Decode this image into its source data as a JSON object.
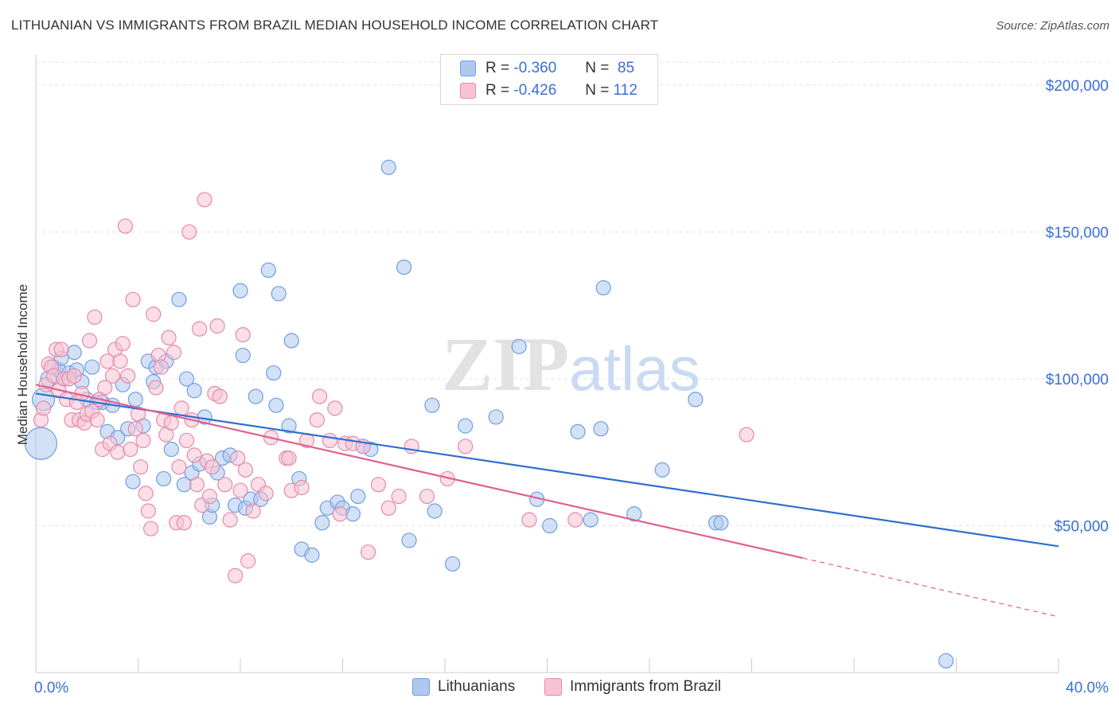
{
  "title": "LITHUANIAN VS IMMIGRANTS FROM BRAZIL MEDIAN HOUSEHOLD INCOME CORRELATION CHART",
  "source": "Source: ZipAtlas.com",
  "watermark": {
    "zip": "ZIP",
    "atlas": "atlas"
  },
  "legend": {
    "r_label": "R =",
    "n_label": "N =",
    "series": [
      {
        "r": "-0.360",
        "n": "85",
        "color": "#aec8ef",
        "border": "#6f9ee0"
      },
      {
        "r": "-0.426",
        "n": "112",
        "color": "#f7c3d4",
        "border": "#e48aa9"
      }
    ]
  },
  "chart_data": {
    "type": "scatter",
    "xlabel": "",
    "ylabel": "Median Household Income",
    "xlim": [
      0,
      40
    ],
    "ylim": [
      0,
      210000
    ],
    "x_tick_labels": [
      "0.0%",
      "40.0%"
    ],
    "y_ticks": [
      50000,
      100000,
      150000,
      200000
    ],
    "y_tick_labels": [
      "$50,000",
      "$100,000",
      "$150,000",
      "$200,000"
    ],
    "grid": true,
    "series": [
      {
        "name": "Lithuanians",
        "color": "#6f9ee0",
        "fill": "#aec8ef",
        "trend": {
          "x0": 0,
          "y0": 95000,
          "x1": 40,
          "y1": 43000,
          "dashed_from": null
        },
        "points": [
          [
            0.2,
            78000,
            20
          ],
          [
            0.3,
            93000,
            14
          ],
          [
            0.5,
            100000,
            10
          ],
          [
            0.7,
            104000,
            9
          ],
          [
            0.9,
            103000,
            9
          ],
          [
            1.0,
            107000,
            9
          ],
          [
            1.1,
            100000,
            9
          ],
          [
            1.3,
            102000,
            9
          ],
          [
            1.5,
            109000,
            9
          ],
          [
            1.6,
            103000,
            9
          ],
          [
            1.8,
            99000,
            9
          ],
          [
            2.0,
            93000,
            9
          ],
          [
            2.2,
            104000,
            9
          ],
          [
            2.4,
            92000,
            9
          ],
          [
            2.6,
            92000,
            9
          ],
          [
            2.8,
            82000,
            9
          ],
          [
            3.0,
            91000,
            9
          ],
          [
            3.2,
            80000,
            9
          ],
          [
            3.4,
            98000,
            9
          ],
          [
            3.6,
            83000,
            9
          ],
          [
            3.8,
            65000,
            9
          ],
          [
            3.9,
            93000,
            9
          ],
          [
            4.2,
            84000,
            9
          ],
          [
            4.4,
            106000,
            9
          ],
          [
            4.6,
            99000,
            9
          ],
          [
            4.7,
            104000,
            9
          ],
          [
            5.0,
            66000,
            9
          ],
          [
            5.1,
            106000,
            9
          ],
          [
            5.3,
            76000,
            9
          ],
          [
            5.6,
            127000,
            9
          ],
          [
            5.8,
            64000,
            9
          ],
          [
            5.9,
            100000,
            9
          ],
          [
            6.1,
            68000,
            9
          ],
          [
            6.2,
            96000,
            9
          ],
          [
            6.4,
            71000,
            9
          ],
          [
            6.6,
            87000,
            9
          ],
          [
            6.8,
            53000,
            9
          ],
          [
            6.9,
            57000,
            9
          ],
          [
            7.1,
            68000,
            9
          ],
          [
            7.3,
            73000,
            9
          ],
          [
            7.6,
            74000,
            9
          ],
          [
            7.8,
            57000,
            9
          ],
          [
            8.0,
            130000,
            9
          ],
          [
            8.1,
            108000,
            9
          ],
          [
            8.2,
            56000,
            9
          ],
          [
            8.4,
            59000,
            9
          ],
          [
            8.6,
            94000,
            9
          ],
          [
            8.8,
            59000,
            9
          ],
          [
            9.1,
            137000,
            9
          ],
          [
            9.3,
            102000,
            9
          ],
          [
            9.4,
            91000,
            9
          ],
          [
            9.5,
            129000,
            9
          ],
          [
            9.9,
            84000,
            9
          ],
          [
            10.0,
            113000,
            9
          ],
          [
            10.3,
            66000,
            9
          ],
          [
            10.4,
            42000,
            9
          ],
          [
            10.8,
            40000,
            9
          ],
          [
            11.2,
            51000,
            9
          ],
          [
            11.4,
            56000,
            9
          ],
          [
            11.8,
            58000,
            9
          ],
          [
            12.0,
            56000,
            9
          ],
          [
            12.4,
            54000,
            9
          ],
          [
            12.6,
            60000,
            9
          ],
          [
            12.8,
            77000,
            9
          ],
          [
            13.1,
            76000,
            9
          ],
          [
            13.8,
            172000,
            9
          ],
          [
            14.4,
            138000,
            9
          ],
          [
            14.6,
            45000,
            9
          ],
          [
            15.5,
            91000,
            9
          ],
          [
            15.6,
            55000,
            9
          ],
          [
            16.3,
            37000,
            9
          ],
          [
            16.8,
            84000,
            9
          ],
          [
            18.0,
            87000,
            9
          ],
          [
            18.9,
            111000,
            9
          ],
          [
            19.6,
            59000,
            9
          ],
          [
            20.1,
            50000,
            9
          ],
          [
            21.2,
            82000,
            9
          ],
          [
            21.7,
            52000,
            9
          ],
          [
            22.1,
            83000,
            9
          ],
          [
            22.2,
            131000,
            9
          ],
          [
            23.4,
            54000,
            9
          ],
          [
            24.5,
            69000,
            9
          ],
          [
            25.8,
            93000,
            9
          ],
          [
            26.6,
            51000,
            9
          ],
          [
            26.8,
            51000,
            9
          ],
          [
            35.6,
            4000,
            9
          ]
        ]
      },
      {
        "name": "Immigrants from Brazil",
        "color": "#e48aa9",
        "fill": "#f7c3d4",
        "trend": {
          "x0": 0,
          "y0": 98000,
          "x1": 30,
          "y1": 39000,
          "dashed_to_x": 40,
          "dashed_to_y": 19000
        },
        "points": [
          [
            0.2,
            86000,
            9
          ],
          [
            0.3,
            90000,
            9
          ],
          [
            0.4,
            98000,
            9
          ],
          [
            0.5,
            105000,
            9
          ],
          [
            0.6,
            104000,
            9
          ],
          [
            0.7,
            101000,
            9
          ],
          [
            0.8,
            110000,
            9
          ],
          [
            0.9,
            96000,
            9
          ],
          [
            1.0,
            110000,
            9
          ],
          [
            1.1,
            100000,
            9
          ],
          [
            1.2,
            93000,
            9
          ],
          [
            1.3,
            100000,
            9
          ],
          [
            1.4,
            86000,
            9
          ],
          [
            1.5,
            101000,
            9
          ],
          [
            1.6,
            92000,
            9
          ],
          [
            1.7,
            86000,
            9
          ],
          [
            1.8,
            95000,
            9
          ],
          [
            1.9,
            85000,
            9
          ],
          [
            2.0,
            88000,
            9
          ],
          [
            2.1,
            113000,
            9
          ],
          [
            2.2,
            89000,
            9
          ],
          [
            2.3,
            121000,
            9
          ],
          [
            2.4,
            86000,
            9
          ],
          [
            2.5,
            93000,
            9
          ],
          [
            2.6,
            76000,
            9
          ],
          [
            2.7,
            97000,
            9
          ],
          [
            2.8,
            106000,
            9
          ],
          [
            2.9,
            78000,
            9
          ],
          [
            3.0,
            101000,
            9
          ],
          [
            3.1,
            110000,
            9
          ],
          [
            3.2,
            75000,
            9
          ],
          [
            3.3,
            106000,
            9
          ],
          [
            3.4,
            112000,
            9
          ],
          [
            3.5,
            152000,
            9
          ],
          [
            3.6,
            101000,
            9
          ],
          [
            3.7,
            76000,
            9
          ],
          [
            3.8,
            127000,
            9
          ],
          [
            3.9,
            83000,
            9
          ],
          [
            4.0,
            88000,
            9
          ],
          [
            4.1,
            70000,
            9
          ],
          [
            4.2,
            79000,
            9
          ],
          [
            4.3,
            61000,
            9
          ],
          [
            4.4,
            55000,
            9
          ],
          [
            4.5,
            49000,
            9
          ],
          [
            4.6,
            122000,
            9
          ],
          [
            4.7,
            97000,
            9
          ],
          [
            4.8,
            108000,
            9
          ],
          [
            4.9,
            104000,
            9
          ],
          [
            5.0,
            86000,
            9
          ],
          [
            5.1,
            81000,
            9
          ],
          [
            5.2,
            114000,
            9
          ],
          [
            5.3,
            85000,
            9
          ],
          [
            5.4,
            109000,
            9
          ],
          [
            5.5,
            51000,
            9
          ],
          [
            5.6,
            70000,
            9
          ],
          [
            5.7,
            90000,
            9
          ],
          [
            5.8,
            51000,
            9
          ],
          [
            5.9,
            79000,
            9
          ],
          [
            6.0,
            150000,
            9
          ],
          [
            6.1,
            86000,
            9
          ],
          [
            6.2,
            74000,
            9
          ],
          [
            6.3,
            64000,
            9
          ],
          [
            6.4,
            117000,
            9
          ],
          [
            6.5,
            57000,
            9
          ],
          [
            6.6,
            161000,
            9
          ],
          [
            6.7,
            72000,
            9
          ],
          [
            6.8,
            60000,
            9
          ],
          [
            6.9,
            70000,
            9
          ],
          [
            7.0,
            95000,
            9
          ],
          [
            7.1,
            118000,
            9
          ],
          [
            7.2,
            94000,
            9
          ],
          [
            7.4,
            64000,
            9
          ],
          [
            7.6,
            52000,
            9
          ],
          [
            7.8,
            33000,
            9
          ],
          [
            7.9,
            73000,
            9
          ],
          [
            8.0,
            62000,
            9
          ],
          [
            8.1,
            115000,
            9
          ],
          [
            8.2,
            69000,
            9
          ],
          [
            8.3,
            38000,
            9
          ],
          [
            8.5,
            55000,
            9
          ],
          [
            8.7,
            64000,
            9
          ],
          [
            9.0,
            61000,
            9
          ],
          [
            9.2,
            80000,
            9
          ],
          [
            9.8,
            73000,
            9
          ],
          [
            9.9,
            73000,
            9
          ],
          [
            10.0,
            62000,
            9
          ],
          [
            10.4,
            63000,
            9
          ],
          [
            10.6,
            79000,
            9
          ],
          [
            11.0,
            86000,
            9
          ],
          [
            11.1,
            94000,
            9
          ],
          [
            11.5,
            79000,
            9
          ],
          [
            11.7,
            90000,
            9
          ],
          [
            11.9,
            54000,
            9
          ],
          [
            12.1,
            78000,
            9
          ],
          [
            12.4,
            78000,
            9
          ],
          [
            12.8,
            77000,
            9
          ],
          [
            13.0,
            41000,
            9
          ],
          [
            13.4,
            64000,
            9
          ],
          [
            13.8,
            56000,
            9
          ],
          [
            14.2,
            60000,
            9
          ],
          [
            14.7,
            77000,
            9
          ],
          [
            15.3,
            60000,
            9
          ],
          [
            16.1,
            66000,
            9
          ],
          [
            16.8,
            77000,
            9
          ],
          [
            19.3,
            52000,
            9
          ],
          [
            21.1,
            52000,
            9
          ],
          [
            27.8,
            81000,
            9
          ]
        ]
      }
    ]
  },
  "bottom_legend": [
    "Lithuanians",
    "Immigrants from Brazil"
  ]
}
